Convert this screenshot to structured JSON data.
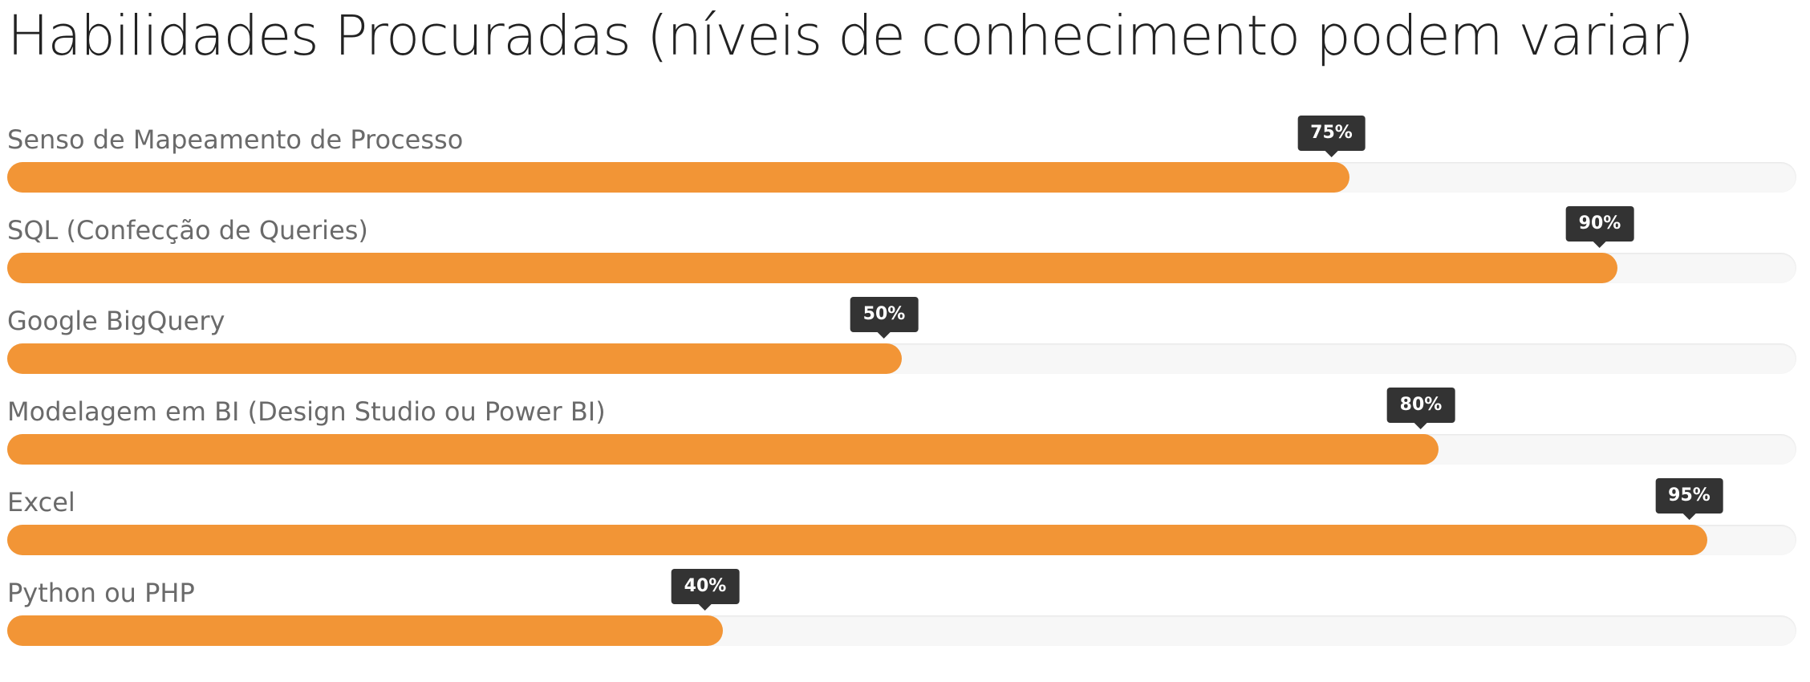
{
  "title": "Habilidades Procuradas (níveis de conhecimento podem variar)",
  "colors": {
    "fill": "#f29536",
    "track": "#f7f7f7",
    "tooltip": "#333333"
  },
  "skills": [
    {
      "label": "Senso de Mapeamento de Processo",
      "percent": 75,
      "percent_label": "75%"
    },
    {
      "label": "SQL (Confecção de Queries)",
      "percent": 90,
      "percent_label": "90%"
    },
    {
      "label": "Google BigQuery",
      "percent": 50,
      "percent_label": "50%"
    },
    {
      "label": "Modelagem em BI (Design Studio ou Power BI)",
      "percent": 80,
      "percent_label": "80%"
    },
    {
      "label": "Excel",
      "percent": 95,
      "percent_label": "95%"
    },
    {
      "label": "Python ou PHP",
      "percent": 40,
      "percent_label": "40%"
    }
  ]
}
